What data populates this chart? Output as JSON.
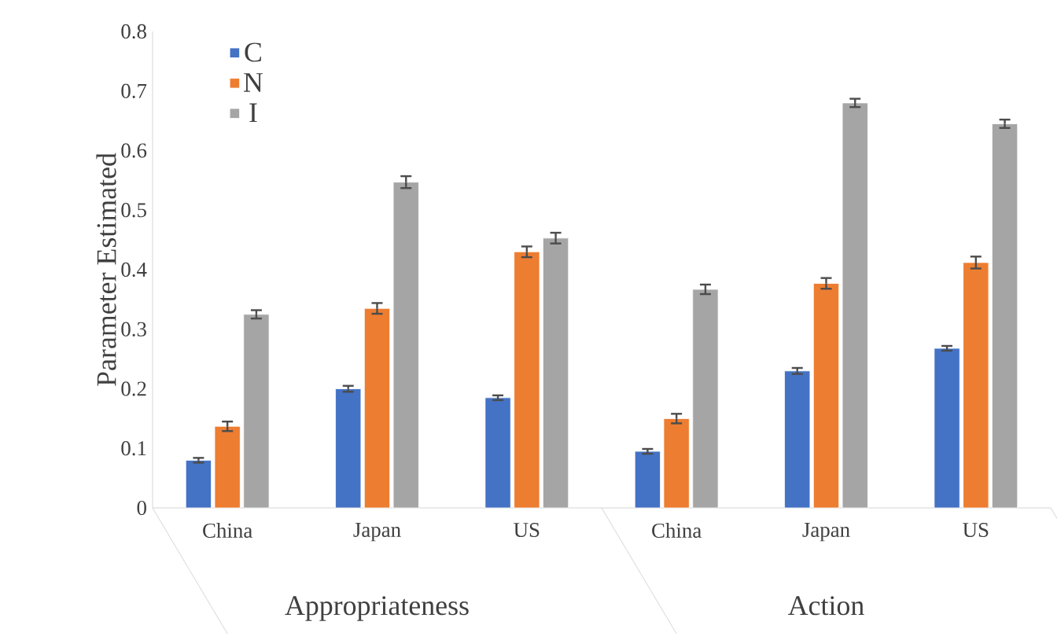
{
  "chart_data": {
    "type": "bar",
    "ylabel": "Parameter Estimated",
    "categories": [
      "China",
      "Japan",
      "US",
      "China",
      "Japan",
      "US"
    ],
    "series": [
      {
        "name": "C",
        "color": "#4472c4",
        "values": [
          0.08,
          0.2,
          0.185,
          0.095,
          0.23,
          0.268
        ],
        "errors": [
          0.004,
          0.005,
          0.004,
          0.004,
          0.005,
          0.004
        ]
      },
      {
        "name": "N",
        "color": "#ed7d31",
        "values": [
          0.137,
          0.335,
          0.43,
          0.15,
          0.377,
          0.412
        ],
        "errors": [
          0.008,
          0.009,
          0.009,
          0.008,
          0.009,
          0.01
        ]
      },
      {
        "name": "I",
        "color": "#a5a5a5",
        "values": [
          0.325,
          0.547,
          0.453,
          0.367,
          0.68,
          0.645
        ],
        "errors": [
          0.007,
          0.01,
          0.009,
          0.008,
          0.007,
          0.007
        ]
      }
    ],
    "ylim": [
      0,
      0.8
    ],
    "yticks": [
      0,
      0.1,
      0.2,
      0.3,
      0.4,
      0.5,
      0.6,
      0.7,
      0.8
    ],
    "annotations": [
      "Appropriateness",
      "Action"
    ],
    "grid": false,
    "legend": "top left"
  }
}
